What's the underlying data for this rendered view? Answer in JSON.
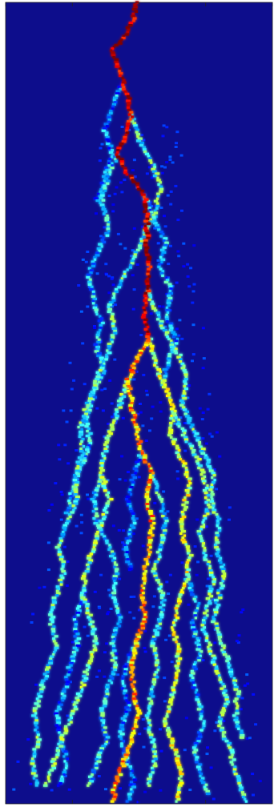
{
  "chart_data": {
    "type": "heatmap",
    "title": "",
    "xlabel": "",
    "ylabel": "",
    "colormap": "jet",
    "colormap_stops": [
      "#00008f",
      "#0000ff",
      "#00a0ff",
      "#40ffff",
      "#b0ff50",
      "#ffff00",
      "#ff8000",
      "#ff0000",
      "#800000"
    ],
    "background_color": "#0d0d8c",
    "x_ticks_visible": true,
    "x_tick_labels": [],
    "y_tick_labels": [],
    "grid": false,
    "legend": "none",
    "x_range": [
      0,
      1
    ],
    "y_range": [
      0,
      1
    ],
    "value_range": [
      0,
      1
    ],
    "paths": [
      {
        "name": "",
        "intensity": 0.95,
        "points": [
          [
            0.49,
            0.0
          ],
          [
            0.48,
            0.02
          ],
          [
            0.45,
            0.04
          ],
          [
            0.4,
            0.06
          ],
          [
            0.42,
            0.08
          ],
          [
            0.44,
            0.1
          ],
          [
            0.46,
            0.12
          ],
          [
            0.47,
            0.14
          ],
          [
            0.46,
            0.16
          ],
          [
            0.42,
            0.19
          ],
          [
            0.45,
            0.21
          ],
          [
            0.52,
            0.24
          ],
          [
            0.53,
            0.27
          ],
          [
            0.53,
            0.3
          ],
          [
            0.54,
            0.33
          ],
          [
            0.53,
            0.36
          ],
          [
            0.52,
            0.39
          ],
          [
            0.54,
            0.42
          ]
        ]
      },
      {
        "name": "",
        "intensity": 0.7,
        "points": [
          [
            0.54,
            0.42
          ],
          [
            0.5,
            0.44
          ],
          [
            0.46,
            0.47
          ],
          [
            0.47,
            0.5
          ],
          [
            0.49,
            0.53
          ],
          [
            0.51,
            0.56
          ],
          [
            0.55,
            0.59
          ],
          [
            0.53,
            0.62
          ],
          [
            0.55,
            0.65
          ],
          [
            0.54,
            0.68
          ],
          [
            0.52,
            0.71
          ],
          [
            0.51,
            0.74
          ],
          [
            0.52,
            0.77
          ],
          [
            0.49,
            0.8
          ],
          [
            0.47,
            0.83
          ],
          [
            0.48,
            0.86
          ],
          [
            0.5,
            0.89
          ],
          [
            0.47,
            0.92
          ],
          [
            0.44,
            0.95
          ],
          [
            0.41,
            0.98
          ],
          [
            0.4,
            1.0
          ]
        ]
      },
      {
        "name": "",
        "intensity": 0.55,
        "points": [
          [
            0.54,
            0.42
          ],
          [
            0.56,
            0.45
          ],
          [
            0.6,
            0.48
          ],
          [
            0.63,
            0.51
          ],
          [
            0.62,
            0.54
          ],
          [
            0.66,
            0.57
          ],
          [
            0.69,
            0.6
          ],
          [
            0.67,
            0.63
          ],
          [
            0.66,
            0.66
          ],
          [
            0.69,
            0.69
          ],
          [
            0.68,
            0.72
          ],
          [
            0.65,
            0.75
          ],
          [
            0.63,
            0.78
          ],
          [
            0.65,
            0.81
          ],
          [
            0.64,
            0.84
          ],
          [
            0.62,
            0.87
          ],
          [
            0.6,
            0.9
          ],
          [
            0.63,
            0.93
          ],
          [
            0.66,
            0.96
          ],
          [
            0.64,
            1.0
          ]
        ]
      },
      {
        "name": "",
        "intensity": 0.45,
        "points": [
          [
            0.46,
            0.47
          ],
          [
            0.43,
            0.5
          ],
          [
            0.4,
            0.53
          ],
          [
            0.37,
            0.56
          ],
          [
            0.36,
            0.59
          ],
          [
            0.39,
            0.62
          ],
          [
            0.36,
            0.65
          ],
          [
            0.33,
            0.68
          ],
          [
            0.3,
            0.71
          ],
          [
            0.29,
            0.74
          ],
          [
            0.32,
            0.77
          ],
          [
            0.34,
            0.8
          ],
          [
            0.31,
            0.83
          ],
          [
            0.28,
            0.86
          ],
          [
            0.25,
            0.89
          ],
          [
            0.21,
            0.92
          ],
          [
            0.18,
            0.95
          ],
          [
            0.15,
            0.98
          ]
        ]
      },
      {
        "name": "",
        "intensity": 0.42,
        "points": [
          [
            0.63,
            0.51
          ],
          [
            0.67,
            0.54
          ],
          [
            0.72,
            0.57
          ],
          [
            0.75,
            0.6
          ],
          [
            0.76,
            0.63
          ],
          [
            0.73,
            0.66
          ],
          [
            0.75,
            0.69
          ],
          [
            0.78,
            0.72
          ],
          [
            0.76,
            0.75
          ],
          [
            0.74,
            0.78
          ],
          [
            0.77,
            0.81
          ],
          [
            0.8,
            0.84
          ],
          [
            0.83,
            0.87
          ],
          [
            0.8,
            0.9
          ],
          [
            0.84,
            0.93
          ],
          [
            0.86,
            0.96
          ],
          [
            0.9,
            1.0
          ]
        ]
      },
      {
        "name": "",
        "intensity": 0.38,
        "points": [
          [
            0.47,
            0.14
          ],
          [
            0.5,
            0.17
          ],
          [
            0.55,
            0.2
          ],
          [
            0.58,
            0.23
          ],
          [
            0.56,
            0.26
          ],
          [
            0.52,
            0.29
          ],
          [
            0.48,
            0.32
          ],
          [
            0.43,
            0.35
          ],
          [
            0.39,
            0.38
          ],
          [
            0.41,
            0.41
          ],
          [
            0.38,
            0.44
          ],
          [
            0.34,
            0.47
          ],
          [
            0.31,
            0.5
          ],
          [
            0.28,
            0.53
          ],
          [
            0.29,
            0.56
          ],
          [
            0.26,
            0.59
          ],
          [
            0.27,
            0.62
          ],
          [
            0.23,
            0.65
          ],
          [
            0.2,
            0.68
          ],
          [
            0.22,
            0.71
          ],
          [
            0.19,
            0.74
          ],
          [
            0.17,
            0.77
          ],
          [
            0.19,
            0.8
          ],
          [
            0.16,
            0.83
          ],
          [
            0.13,
            0.86
          ],
          [
            0.11,
            0.89
          ],
          [
            0.12,
            0.92
          ],
          [
            0.1,
            0.95
          ],
          [
            0.12,
            0.98
          ]
        ]
      },
      {
        "name": "",
        "intensity": 0.4,
        "points": [
          [
            0.53,
            0.36
          ],
          [
            0.57,
            0.39
          ],
          [
            0.61,
            0.42
          ],
          [
            0.65,
            0.44
          ],
          [
            0.68,
            0.47
          ],
          [
            0.66,
            0.5
          ],
          [
            0.7,
            0.53
          ],
          [
            0.74,
            0.56
          ],
          [
            0.78,
            0.59
          ],
          [
            0.77,
            0.62
          ],
          [
            0.8,
            0.65
          ],
          [
            0.79,
            0.68
          ],
          [
            0.82,
            0.71
          ],
          [
            0.8,
            0.74
          ],
          [
            0.78,
            0.77
          ],
          [
            0.81,
            0.8
          ],
          [
            0.84,
            0.83
          ],
          [
            0.87,
            0.86
          ],
          [
            0.86,
            0.89
          ],
          [
            0.89,
            0.92
          ]
        ]
      },
      {
        "name": "",
        "intensity": 0.36,
        "points": [
          [
            0.55,
            0.59
          ],
          [
            0.58,
            0.62
          ],
          [
            0.6,
            0.65
          ],
          [
            0.58,
            0.68
          ],
          [
            0.56,
            0.71
          ],
          [
            0.59,
            0.74
          ],
          [
            0.58,
            0.77
          ],
          [
            0.55,
            0.8
          ],
          [
            0.57,
            0.83
          ],
          [
            0.55,
            0.86
          ],
          [
            0.53,
            0.89
          ],
          [
            0.55,
            0.92
          ],
          [
            0.56,
            0.95
          ],
          [
            0.53,
            0.98
          ]
        ]
      },
      {
        "name": "",
        "intensity": 0.33,
        "points": [
          [
            0.36,
            0.59
          ],
          [
            0.33,
            0.62
          ],
          [
            0.34,
            0.65
          ],
          [
            0.39,
            0.68
          ],
          [
            0.42,
            0.71
          ],
          [
            0.4,
            0.74
          ],
          [
            0.43,
            0.77
          ],
          [
            0.4,
            0.8
          ],
          [
            0.41,
            0.83
          ],
          [
            0.38,
            0.86
          ],
          [
            0.36,
            0.89
          ],
          [
            0.38,
            0.92
          ],
          [
            0.34,
            0.95
          ],
          [
            0.31,
            0.98
          ]
        ]
      },
      {
        "name": "",
        "intensity": 0.3,
        "points": [
          [
            0.42,
            0.19
          ],
          [
            0.38,
            0.22
          ],
          [
            0.36,
            0.25
          ],
          [
            0.39,
            0.28
          ],
          [
            0.35,
            0.31
          ],
          [
            0.31,
            0.34
          ],
          [
            0.33,
            0.37
          ],
          [
            0.36,
            0.4
          ],
          [
            0.34,
            0.43
          ],
          [
            0.37,
            0.46
          ],
          [
            0.33,
            0.49
          ],
          [
            0.3,
            0.52
          ],
          [
            0.32,
            0.55
          ],
          [
            0.28,
            0.58
          ],
          [
            0.25,
            0.61
          ],
          [
            0.23,
            0.64
          ]
        ]
      },
      {
        "name": "",
        "intensity": 0.3,
        "points": [
          [
            0.68,
            0.72
          ],
          [
            0.72,
            0.75
          ],
          [
            0.7,
            0.78
          ],
          [
            0.73,
            0.81
          ],
          [
            0.7,
            0.84
          ],
          [
            0.72,
            0.87
          ],
          [
            0.74,
            0.9
          ],
          [
            0.71,
            0.93
          ],
          [
            0.73,
            0.96
          ],
          [
            0.76,
            0.99
          ]
        ]
      },
      {
        "name": "",
        "intensity": 0.28,
        "points": [
          [
            0.52,
            0.24
          ],
          [
            0.56,
            0.27
          ],
          [
            0.6,
            0.3
          ],
          [
            0.58,
            0.33
          ],
          [
            0.62,
            0.36
          ],
          [
            0.6,
            0.39
          ],
          [
            0.64,
            0.42
          ],
          [
            0.61,
            0.45
          ],
          [
            0.58,
            0.48
          ]
        ]
      },
      {
        "name": "",
        "intensity": 0.26,
        "points": [
          [
            0.29,
            0.74
          ],
          [
            0.26,
            0.77
          ],
          [
            0.27,
            0.8
          ],
          [
            0.24,
            0.83
          ],
          [
            0.22,
            0.86
          ],
          [
            0.19,
            0.89
          ],
          [
            0.21,
            0.92
          ],
          [
            0.23,
            0.95
          ],
          [
            0.2,
            0.98
          ]
        ]
      },
      {
        "name": "",
        "intensity": 0.25,
        "points": [
          [
            0.49,
            0.8
          ],
          [
            0.46,
            0.82
          ],
          [
            0.44,
            0.85
          ],
          [
            0.46,
            0.88
          ],
          [
            0.43,
            0.91
          ],
          [
            0.45,
            0.94
          ],
          [
            0.48,
            0.97
          ],
          [
            0.46,
            1.0
          ]
        ]
      },
      {
        "name": "",
        "intensity": 0.24,
        "points": [
          [
            0.44,
            0.1
          ],
          [
            0.4,
            0.13
          ],
          [
            0.37,
            0.16
          ],
          [
            0.4,
            0.19
          ],
          [
            0.37,
            0.22
          ],
          [
            0.34,
            0.25
          ]
        ]
      },
      {
        "name": "",
        "intensity": 0.22,
        "points": [
          [
            0.51,
            0.56
          ],
          [
            0.48,
            0.59
          ],
          [
            0.46,
            0.62
          ],
          [
            0.48,
            0.65
          ],
          [
            0.45,
            0.68
          ],
          [
            0.47,
            0.71
          ]
        ]
      }
    ]
  }
}
